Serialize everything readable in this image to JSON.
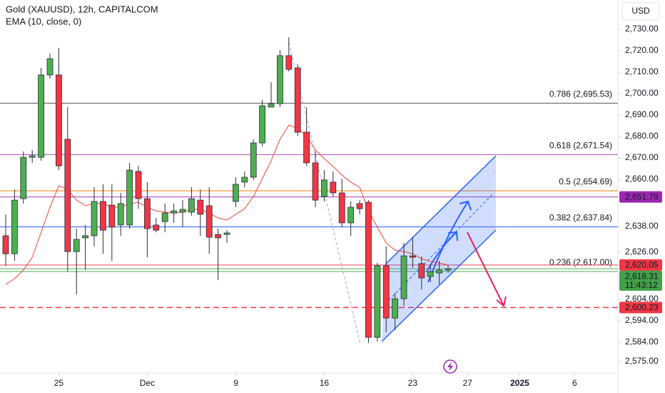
{
  "chart_data": {
    "type": "candlestick",
    "title": "Gold (XAUUSD), 12h, CAPITALCOM",
    "currency": "USD",
    "up_color": "#4caf50",
    "down_color": "#f23645",
    "open": [
      2633.7,
      2625.3,
      2651,
      2670.3,
      2670.3,
      2708.7,
      2708.7,
      2678.7,
      2626.3,
      2632.7,
      2633.7,
      2649.7,
      2648,
      2638.7,
      2638.7,
      2663.7,
      2651,
      2638.7,
      2640.3,
      2644.3,
      2644.7,
      2644.7,
      2650.3,
      2647.7,
      2634.3,
      2634.3,
      2649.7,
      2658.7,
      2661,
      2677,
      2693.7,
      2695.3,
      2717.7,
      2712,
      2682,
      2667.7,
      2652,
      2658.7,
      2653.7,
      2639.7,
      2648.7,
      2649.3,
      2586.3,
      2619.7,
      2595.3,
      2604.3,
      2624.3,
      2620.7,
      2614.7,
      2616.3,
      2617.7
    ],
    "high": [
      2643.7,
      2655.3,
      2673,
      2673.7,
      2712,
      2718.7,
      2721.3,
      2693.7,
      2637,
      2638.7,
      2656.3,
      2657.7,
      2657.7,
      2653.7,
      2667.7,
      2666.3,
      2658.7,
      2642,
      2648.7,
      2648.7,
      2650.3,
      2656.3,
      2655.3,
      2656.3,
      2637,
      2636.3,
      2661,
      2663.7,
      2678.7,
      2697,
      2705.3,
      2720.3,
      2726.3,
      2713.7,
      2693.7,
      2673,
      2664.3,
      2663.7,
      2660.3,
      2649.7,
      2650.3,
      2650.3,
      2621,
      2628.7,
      2607,
      2630.3,
      2633,
      2624,
      2620.3,
      2622,
      2620
    ],
    "low": [
      2619.7,
      2622,
      2648.7,
      2667.7,
      2668.7,
      2707,
      2664.3,
      2617,
      2606.3,
      2617.7,
      2628.7,
      2625.3,
      2622,
      2633.7,
      2637,
      2646.3,
      2623.7,
      2635.3,
      2635.3,
      2639.7,
      2637.7,
      2643,
      2633.7,
      2625.3,
      2613,
      2630.3,
      2647,
      2656.3,
      2659.7,
      2675.3,
      2693.7,
      2693.7,
      2710.3,
      2680.3,
      2666.3,
      2647,
      2649.7,
      2652,
      2637.7,
      2633.7,
      2643.7,
      2583.7,
      2584.3,
      2588.7,
      2589.7,
      2601,
      2618.7,
      2608.7,
      2612,
      2611,
      2616.5
    ],
    "close": [
      2625.3,
      2650.3,
      2670.3,
      2671,
      2708.7,
      2716.3,
      2666.3,
      2626.3,
      2632,
      2633.7,
      2649.7,
      2636.3,
      2637.7,
      2648.7,
      2664.3,
      2651,
      2637,
      2636.3,
      2644.3,
      2645.3,
      2646,
      2651,
      2643.7,
      2633,
      2632.7,
      2635,
      2657.7,
      2661,
      2677,
      2694.3,
      2695.3,
      2717.7,
      2711.3,
      2682,
      2667.7,
      2650.3,
      2659.7,
      2653.7,
      2639.7,
      2647,
      2646.3,
      2586.3,
      2619.7,
      2595.3,
      2604.3,
      2624.3,
      2623.7,
      2614,
      2617,
      2617.7,
      2618.31
    ],
    "ema": {
      "name": "EMA (10, close, 0)",
      "color": "#f44336",
      "values": [
        2611,
        2613.7,
        2617.7,
        2623.7,
        2635.3,
        2647,
        2657,
        2655.3,
        2650.3,
        2647.7,
        2648.7,
        2648.7,
        2647,
        2647,
        2648.7,
        2649.3,
        2647,
        2645.3,
        2644.7,
        2644.3,
        2644.7,
        2646,
        2646,
        2644.3,
        2642,
        2641,
        2643.7,
        2646.3,
        2652,
        2660.3,
        2668.7,
        2678.7,
        2685.3,
        2683.7,
        2680.3,
        2673.7,
        2669.7,
        2666,
        2662,
        2658.7,
        2656.3,
        2645.3,
        2637.7,
        2630.3,
        2627,
        2626.3,
        2625.3,
        2623,
        2621.7,
        2621,
        2620.05
      ]
    },
    "xlim": [
      -0.645,
      69.19
    ],
    "xticks": [
      {
        "value": 6,
        "label": "25"
      },
      {
        "value": 16,
        "label": "Dec"
      },
      {
        "value": 26,
        "label": "9"
      },
      {
        "value": 36,
        "label": "16"
      },
      {
        "value": 46,
        "label": "23"
      },
      {
        "value": 52.2,
        "label": "27"
      },
      {
        "value": 58.1,
        "label": "2025"
      },
      {
        "value": 64.3,
        "label": "6"
      }
    ],
    "ylim": [
      2569.67,
      2743.67
    ],
    "yticks": [
      {
        "value": 2730,
        "label": "2,730.00"
      },
      {
        "value": 2720,
        "label": "2,720.00"
      },
      {
        "value": 2710,
        "label": "2,710.00"
      },
      {
        "value": 2700,
        "label": "2,700.00"
      },
      {
        "value": 2690,
        "label": "2,690.00"
      },
      {
        "value": 2680,
        "label": "2,680.00"
      },
      {
        "value": 2670,
        "label": "2,670.00"
      },
      {
        "value": 2660,
        "label": "2,660.00"
      },
      {
        "value": 2638,
        "label": "2,638.00"
      },
      {
        "value": 2626,
        "label": "2,626.00"
      },
      {
        "value": 2604,
        "label": "2,604.00"
      },
      {
        "value": 2594,
        "label": "2,594.00"
      },
      {
        "value": 2584,
        "label": "2,584.00"
      },
      {
        "value": 2575,
        "label": "2,575.00"
      }
    ],
    "levels": [
      {
        "value": 2695.53,
        "label": "0.786 (2,695.53)",
        "color": "#555555"
      },
      {
        "value": 2671.54,
        "label": "0.618 (2,671.54)",
        "color": "#ab47bc"
      },
      {
        "value": 2654.69,
        "label": "0.5 (2,654.69)",
        "color": "#f57c00"
      },
      {
        "value": 2637.84,
        "label": "0.382 (2,637.84)",
        "color": "#2962ff"
      },
      {
        "value": 2617.0,
        "label": "0.236 (2,617.00)",
        "color": "#4caf50"
      }
    ],
    "price_lines": [
      {
        "value": 2651.79,
        "label": "2,651.79",
        "color": "#9c27b0",
        "dashed": false
      },
      {
        "value": 2620.05,
        "label": "2,620.05",
        "color": "#f23645",
        "dashed": false
      },
      {
        "value": 2618.31,
        "label": "2,618.31",
        "countdown": "11:43:12",
        "color": "#43a047",
        "dashed": false
      },
      {
        "value": 2600.23,
        "label": "2,600.23",
        "color": "#f23645",
        "dashed": true
      }
    ]
  }
}
